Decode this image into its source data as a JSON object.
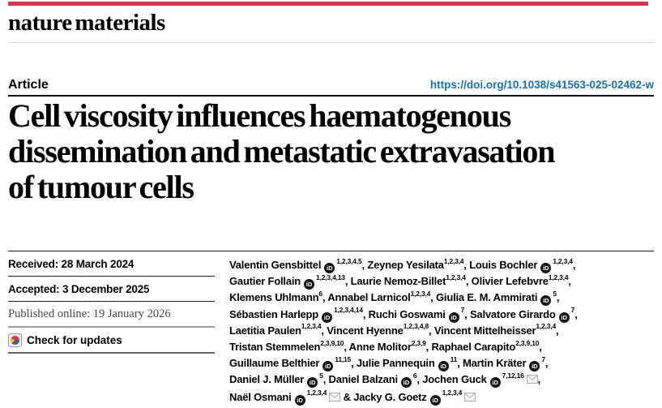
{
  "journal": {
    "name": "nature materials",
    "accent_red": "#e8304a"
  },
  "header": {
    "article_label": "Article",
    "doi": "https://doi.org/10.1038/s41563-025-02462-w",
    "doi_color": "#1173b8"
  },
  "title": {
    "full": "Cell viscosity influences haematogenous dissemination and metastatic extravasation of tumour cells",
    "lines": [
      "Cell viscosity influences haematogenous",
      "dissemination and metastatic extravasation",
      "of tumour cells"
    ]
  },
  "meta": {
    "received": "Received: 28 March 2024",
    "accepted": "Accepted: 3 December 2025",
    "published_online": "Published online: 19 January 2026",
    "check_updates_label": "Check for updates"
  },
  "icons": {
    "orcid_label": "iD",
    "crossmark": "crossmark-icon",
    "envelope": "envelope-icon"
  },
  "authors": {
    "lines": [
      [
        {
          "name": "Valentin Gensbittel",
          "orcid": true,
          "sup": "1,2,3,4,5",
          "after": ", "
        },
        {
          "name": "Zeynep Yesilata",
          "sup": "1,2,3,4",
          "after": ", "
        },
        {
          "name": "Louis Bochler",
          "orcid": true,
          "sup": "1,2,3,4",
          "after": ","
        }
      ],
      [
        {
          "name": "Gautier Follain",
          "orcid": true,
          "sup": "1,2,3,4,13",
          "after": ", "
        },
        {
          "name": "Laurie Nemoz-Billet",
          "sup": "1,2,3,4",
          "after": ", "
        },
        {
          "name": "Olivier Lefebvre",
          "sup": "1,2,3,4",
          "after": ","
        }
      ],
      [
        {
          "name": "Klemens Uhlmann",
          "sup": "6",
          "after": ", "
        },
        {
          "name": "Annabel Larnicol",
          "sup": "1,2,3,4",
          "after": ", "
        },
        {
          "name": "Giulia E. M. Ammirati",
          "orcid": true,
          "sup": "5",
          "after": ","
        }
      ],
      [
        {
          "name": "Sébastien Harlepp",
          "orcid": true,
          "sup": "1,2,3,4,14",
          "after": ", "
        },
        {
          "name": "Ruchi Goswami",
          "orcid": true,
          "sup": "7",
          "after": ", "
        },
        {
          "name": "Salvatore Girardo",
          "orcid": true,
          "sup": "7",
          "after": ","
        }
      ],
      [
        {
          "name": "Laetitia Paulen",
          "sup": "1,2,3,4",
          "after": ", "
        },
        {
          "name": "Vincent Hyenne",
          "sup": "1,2,3,4,8",
          "after": ", "
        },
        {
          "name": "Vincent Mittelheisser",
          "sup": "1,2,3,4",
          "after": ","
        }
      ],
      [
        {
          "name": "Tristan Stemmelen",
          "sup": "2,3,9,10",
          "after": ", "
        },
        {
          "name": "Anne Molitor",
          "sup": "2,3,9",
          "after": ", "
        },
        {
          "name": "Raphael Carapito",
          "sup": "2,3,9,10",
          "after": ","
        }
      ],
      [
        {
          "name": "Guillaume Belthier",
          "orcid": true,
          "sup": "11,15",
          "after": ", "
        },
        {
          "name": "Julie Pannequin",
          "orcid": true,
          "sup": "11",
          "after": ", "
        },
        {
          "name": "Martin Kräter",
          "orcid": true,
          "sup": "7",
          "after": ","
        }
      ],
      [
        {
          "name": "Daniel J. Müller",
          "orcid": true,
          "sup": "5",
          "after": ", "
        },
        {
          "name": "Daniel Balzani",
          "orcid": true,
          "sup": "6",
          "after": ", "
        },
        {
          "name": "Jochen Guck",
          "orcid": true,
          "sup": "7,12,16",
          "mail": true,
          "after": ","
        }
      ],
      [
        {
          "name": "Naël Osmani",
          "orcid": true,
          "sup": "1,2,3,4",
          "mail": true,
          "after": " & "
        },
        {
          "name": "Jacky G. Goetz",
          "orcid": true,
          "sup": "1,2,3,4",
          "mail": true,
          "after": ""
        }
      ]
    ]
  }
}
